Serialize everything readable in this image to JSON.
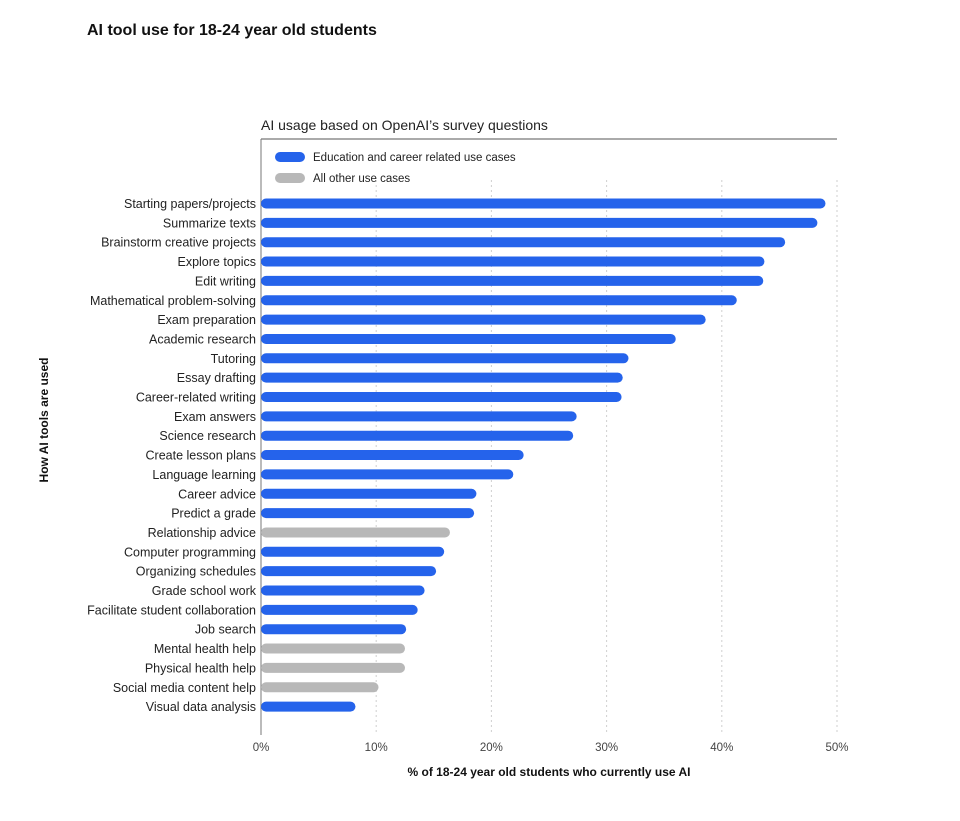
{
  "page_title": "AI tool use for 18-24 year old students",
  "chart_data": {
    "type": "bar",
    "orientation": "horizontal",
    "title": "AI usage based on OpenAI’s survey questions",
    "xlabel": "% of 18-24 year old students who currently use AI",
    "ylabel": "How AI tools are used",
    "xlim": [
      0,
      50
    ],
    "xticks": [
      0,
      10,
      20,
      30,
      40,
      50
    ],
    "xtick_labels": [
      "0%",
      "10%",
      "20%",
      "30%",
      "40%",
      "50%"
    ],
    "grid": "vertical dotted",
    "legend_position": "top-left",
    "legend": [
      {
        "key": "edu",
        "label": "Education and career related use cases",
        "color": "#2563eb"
      },
      {
        "key": "other",
        "label": "All other use cases",
        "color": "#b8b8b8"
      }
    ],
    "categories": [
      "Starting papers/projects",
      "Summarize texts",
      "Brainstorm creative projects",
      "Explore topics",
      "Edit writing",
      "Mathematical problem-solving",
      "Exam preparation",
      "Academic research",
      "Tutoring",
      "Essay drafting",
      "Career-related writing",
      "Exam answers",
      "Science research",
      "Create lesson plans",
      "Language learning",
      "Career advice",
      "Predict a grade",
      "Relationship advice",
      "Computer programming",
      "Organizing schedules",
      "Grade school work",
      "Facilitate student collaboration",
      "Job search",
      "Mental health help",
      "Physical health help",
      "Social media content help",
      "Visual data analysis"
    ],
    "values": [
      49,
      48.3,
      45.5,
      43.7,
      43.6,
      41.3,
      38.6,
      36,
      31.9,
      31.4,
      31.3,
      27.4,
      27.1,
      22.8,
      21.9,
      18.7,
      18.5,
      16.4,
      15.9,
      15.2,
      14.2,
      13.6,
      12.6,
      12.5,
      12.5,
      10.2,
      8.2
    ],
    "groups": [
      "edu",
      "edu",
      "edu",
      "edu",
      "edu",
      "edu",
      "edu",
      "edu",
      "edu",
      "edu",
      "edu",
      "edu",
      "edu",
      "edu",
      "edu",
      "edu",
      "edu",
      "other",
      "edu",
      "edu",
      "edu",
      "edu",
      "edu",
      "other",
      "other",
      "other",
      "edu"
    ]
  }
}
